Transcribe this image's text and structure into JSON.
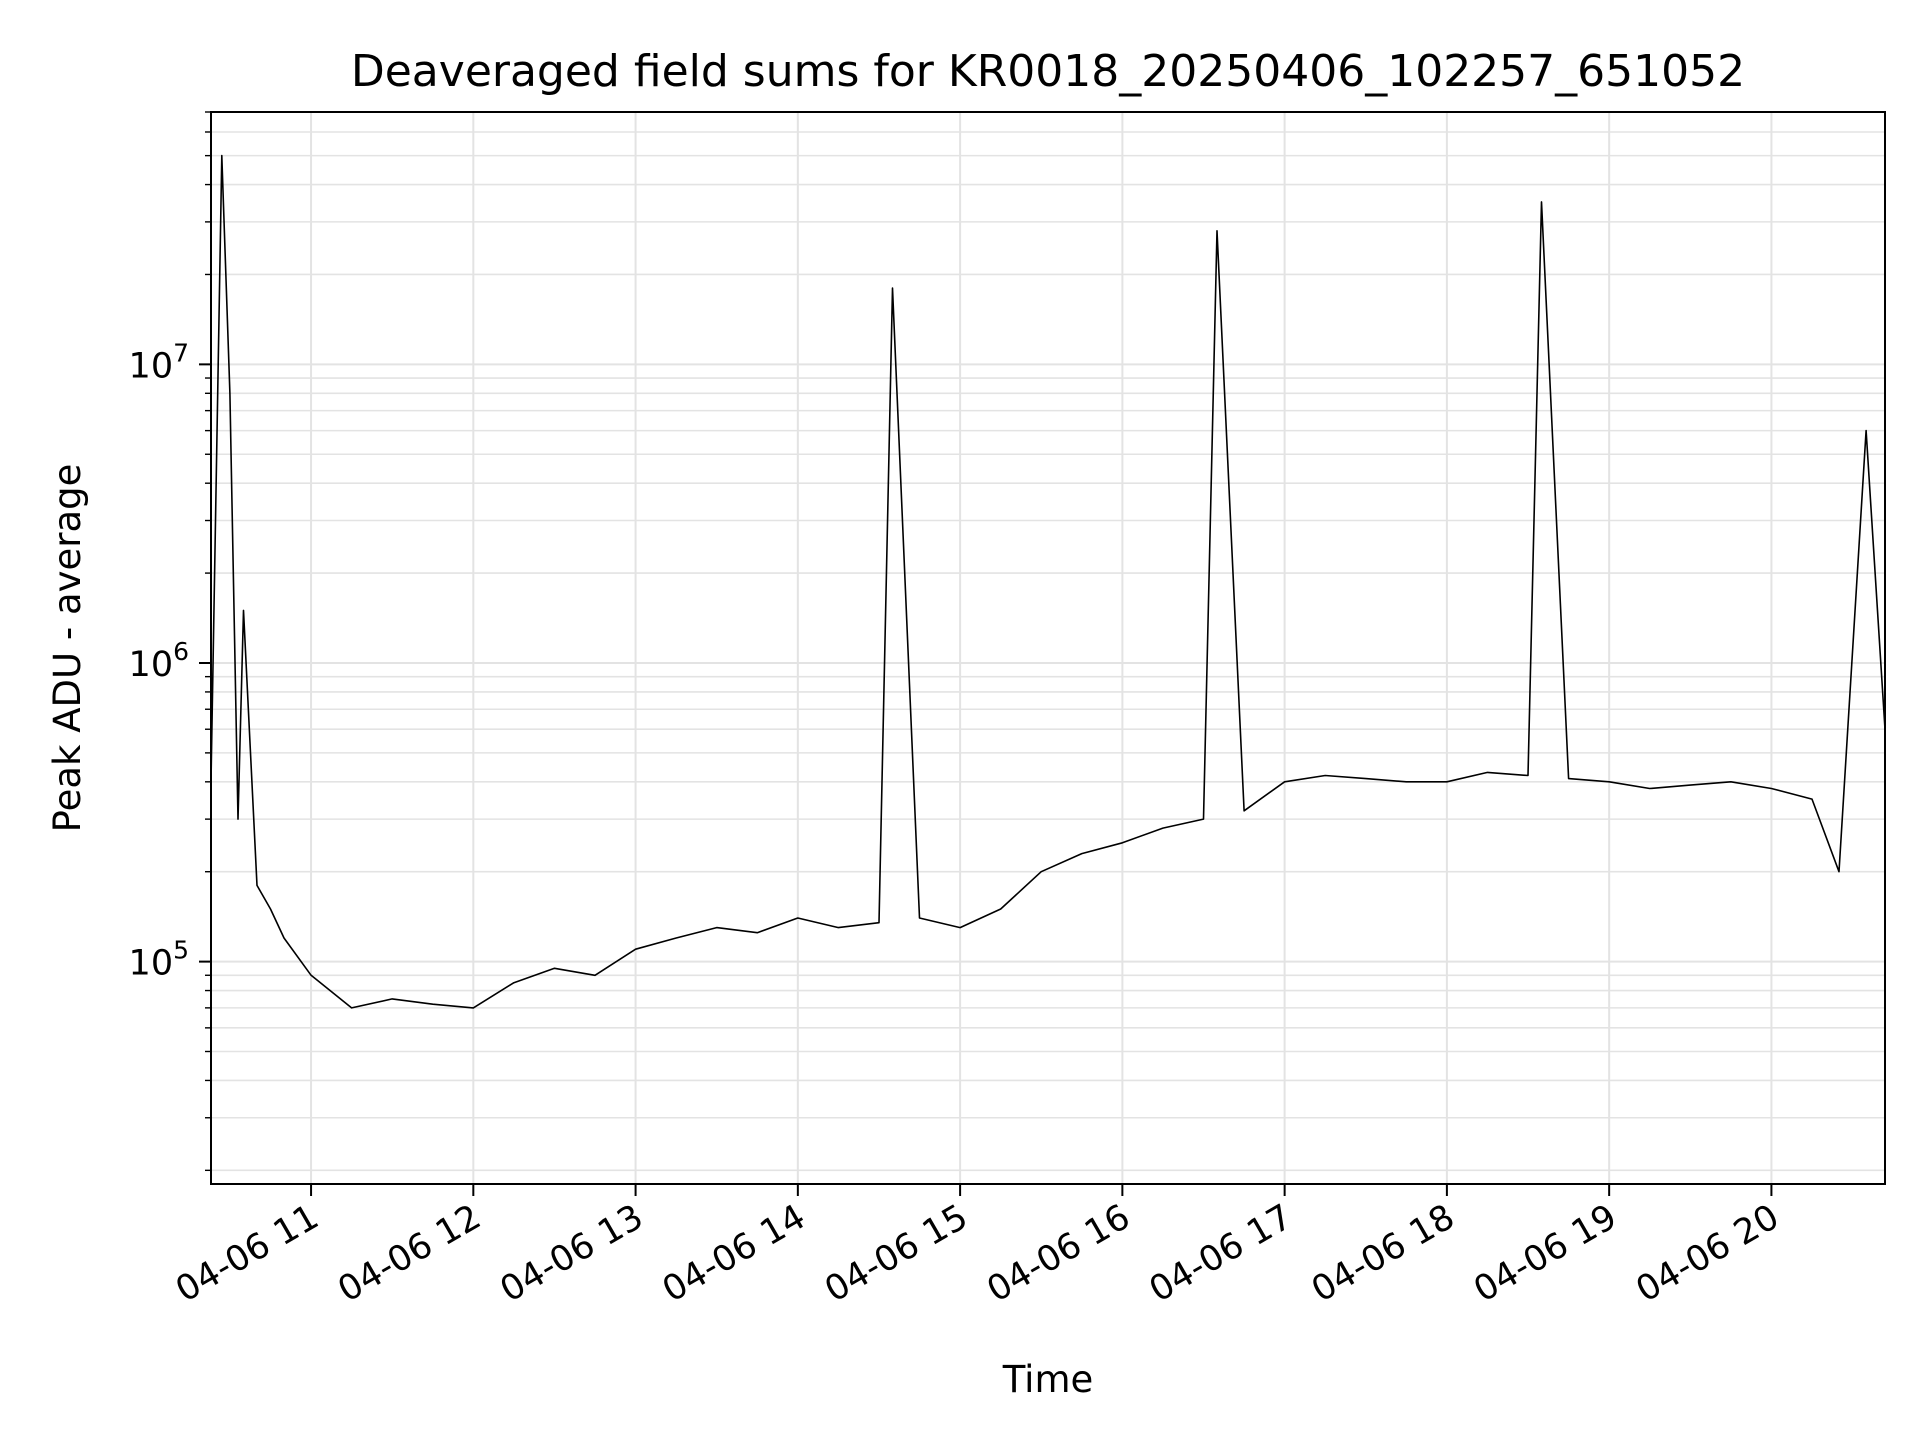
{
  "chart_data": {
    "type": "line",
    "title": "Deaveraged field sums for KR0018_20250406_102257_651052",
    "xlabel": "Time",
    "ylabel": "Peak ADU - average",
    "yscale": "log",
    "xlim": [
      "2025-04-06T10:23",
      "2025-04-06T20:42"
    ],
    "ylim": [
      18000,
      70000000
    ],
    "grid": true,
    "line_color": "#000000",
    "x_ticks": [
      {
        "value": "2025-04-06T11:00",
        "label": "04-06 11"
      },
      {
        "value": "2025-04-06T12:00",
        "label": "04-06 12"
      },
      {
        "value": "2025-04-06T13:00",
        "label": "04-06 13"
      },
      {
        "value": "2025-04-06T14:00",
        "label": "04-06 14"
      },
      {
        "value": "2025-04-06T15:00",
        "label": "04-06 15"
      },
      {
        "value": "2025-04-06T16:00",
        "label": "04-06 16"
      },
      {
        "value": "2025-04-06T17:00",
        "label": "04-06 17"
      },
      {
        "value": "2025-04-06T18:00",
        "label": "04-06 18"
      },
      {
        "value": "2025-04-06T19:00",
        "label": "04-06 19"
      },
      {
        "value": "2025-04-06T20:00",
        "label": "04-06 20"
      }
    ],
    "y_ticks": [
      {
        "value": 100000,
        "base": "10",
        "exp": "5"
      },
      {
        "value": 1000000,
        "base": "10",
        "exp": "6"
      },
      {
        "value": 10000000,
        "base": "10",
        "exp": "7"
      }
    ],
    "series": [
      {
        "x": [
          "2025-04-06T10:23",
          "2025-04-06T10:27",
          "2025-04-06T10:30",
          "2025-04-06T10:33",
          "2025-04-06T10:35",
          "2025-04-06T10:40",
          "2025-04-06T10:45",
          "2025-04-06T10:50",
          "2025-04-06T11:00",
          "2025-04-06T11:15",
          "2025-04-06T11:30",
          "2025-04-06T11:45",
          "2025-04-06T12:00",
          "2025-04-06T12:15",
          "2025-04-06T12:30",
          "2025-04-06T12:45",
          "2025-04-06T13:00",
          "2025-04-06T13:15",
          "2025-04-06T13:30",
          "2025-04-06T13:45",
          "2025-04-06T14:00",
          "2025-04-06T14:15",
          "2025-04-06T14:30",
          "2025-04-06T14:35",
          "2025-04-06T14:45",
          "2025-04-06T15:00",
          "2025-04-06T15:15",
          "2025-04-06T15:30",
          "2025-04-06T15:45",
          "2025-04-06T16:00",
          "2025-04-06T16:15",
          "2025-04-06T16:30",
          "2025-04-06T16:35",
          "2025-04-06T16:45",
          "2025-04-06T17:00",
          "2025-04-06T17:15",
          "2025-04-06T17:30",
          "2025-04-06T17:45",
          "2025-04-06T18:00",
          "2025-04-06T18:15",
          "2025-04-06T18:30",
          "2025-04-06T18:35",
          "2025-04-06T18:45",
          "2025-04-06T19:00",
          "2025-04-06T19:15",
          "2025-04-06T19:30",
          "2025-04-06T19:45",
          "2025-04-06T20:00",
          "2025-04-06T20:15",
          "2025-04-06T20:25",
          "2025-04-06T20:35",
          "2025-04-06T20:42"
        ],
        "y": [
          400000,
          50000000,
          8000000,
          300000,
          1500000,
          180000,
          150000,
          120000,
          90000,
          70000,
          75000,
          72000,
          70000,
          85000,
          95000,
          90000,
          110000,
          120000,
          130000,
          125000,
          140000,
          130000,
          135000,
          18000000,
          140000,
          130000,
          150000,
          200000,
          230000,
          250000,
          280000,
          300000,
          28000000,
          320000,
          400000,
          420000,
          410000,
          400000,
          400000,
          430000,
          420000,
          35000000,
          410000,
          400000,
          380000,
          390000,
          400000,
          380000,
          350000,
          200000,
          6000000,
          600000
        ]
      }
    ]
  }
}
